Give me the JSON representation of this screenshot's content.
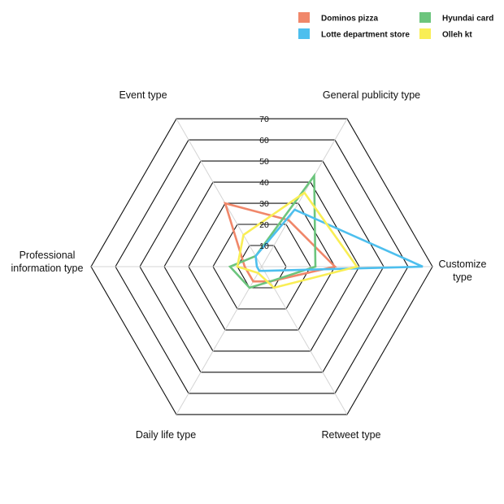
{
  "chart_data": {
    "type": "radar",
    "title": "",
    "axes": [
      {
        "label_lines": [
          "Customize",
          "type"
        ]
      },
      {
        "label_lines": [
          "Retweet type"
        ]
      },
      {
        "label_lines": [
          "Daily life type"
        ]
      },
      {
        "label_lines": [
          "Professional",
          "information type"
        ]
      },
      {
        "label_lines": [
          "Event type"
        ]
      },
      {
        "label_lines": [
          "General publicity type"
        ]
      }
    ],
    "r_ticks": [
      "10",
      "20",
      "30",
      "40",
      "50",
      "60",
      "70"
    ],
    "r_max": 70,
    "grid": true,
    "legend_position": "top-right",
    "series": [
      {
        "name": "Dominos pizza",
        "color": "#f0876a",
        "values": [
          30,
          7,
          7,
          7,
          30,
          22
        ]
      },
      {
        "name": "Hyundai card",
        "color": "#6cc57d",
        "values": [
          22,
          7,
          10,
          13,
          5,
          43
        ]
      },
      {
        "name": "Lotte department store",
        "color": "#4dbfee",
        "values": [
          66,
          2,
          2,
          2,
          5,
          27
        ]
      },
      {
        "name": "Olleh kt",
        "color": "#f9ee55",
        "values": [
          39,
          10,
          3,
          10,
          15,
          35
        ]
      }
    ]
  }
}
